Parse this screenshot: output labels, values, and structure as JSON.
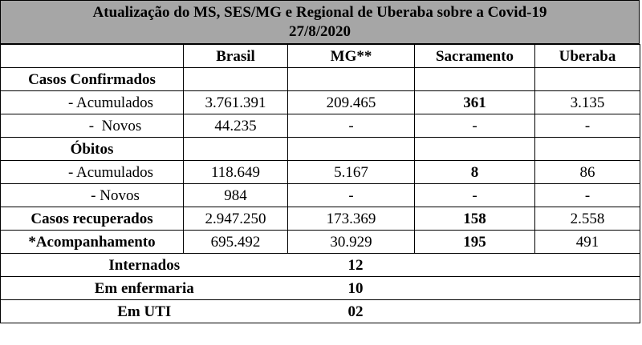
{
  "title": {
    "line1": "Atualização do MS, SES/MG e Regional de Uberaba sobre a Covid-19",
    "line2": "27/8/2020"
  },
  "header": [
    "",
    "Brasil",
    "MG**",
    "Sacramento",
    "Uberaba"
  ],
  "sections": {
    "confirmados": {
      "label": "Casos Confirmados"
    },
    "obitos": {
      "label": "Óbitos"
    }
  },
  "rows": {
    "conf_acum": {
      "label": "- Acumulados",
      "brasil": "3.761.391",
      "mg": "209.465",
      "sacramento": "361",
      "uberaba": "3.135"
    },
    "conf_novos": {
      "label": "-  Novos",
      "brasil": "44.235",
      "mg": "-",
      "sacramento": "-",
      "uberaba": "-"
    },
    "obitos_acum": {
      "label": "- Acumulados",
      "brasil": "118.649",
      "mg": "5.167",
      "sacramento": "8",
      "uberaba": "86"
    },
    "obitos_novos": {
      "label": "- Novos",
      "brasil": "984",
      "mg": "-",
      "sacramento": "-",
      "uberaba": "-"
    },
    "recuperados": {
      "label": "Casos recuperados",
      "brasil": "2.947.250",
      "mg": "173.369",
      "sacramento": "158",
      "uberaba": "2.558"
    },
    "acompanhamento": {
      "label": "*Acompanhamento",
      "brasil": "695.492",
      "mg": "30.929",
      "sacramento": "195",
      "uberaba": "491"
    }
  },
  "sacramento_details": [
    {
      "label": "Internados",
      "value": "12"
    },
    {
      "label": "Em enfermaria",
      "value": "10"
    },
    {
      "label": "Em UTI",
      "value": "02"
    }
  ]
}
